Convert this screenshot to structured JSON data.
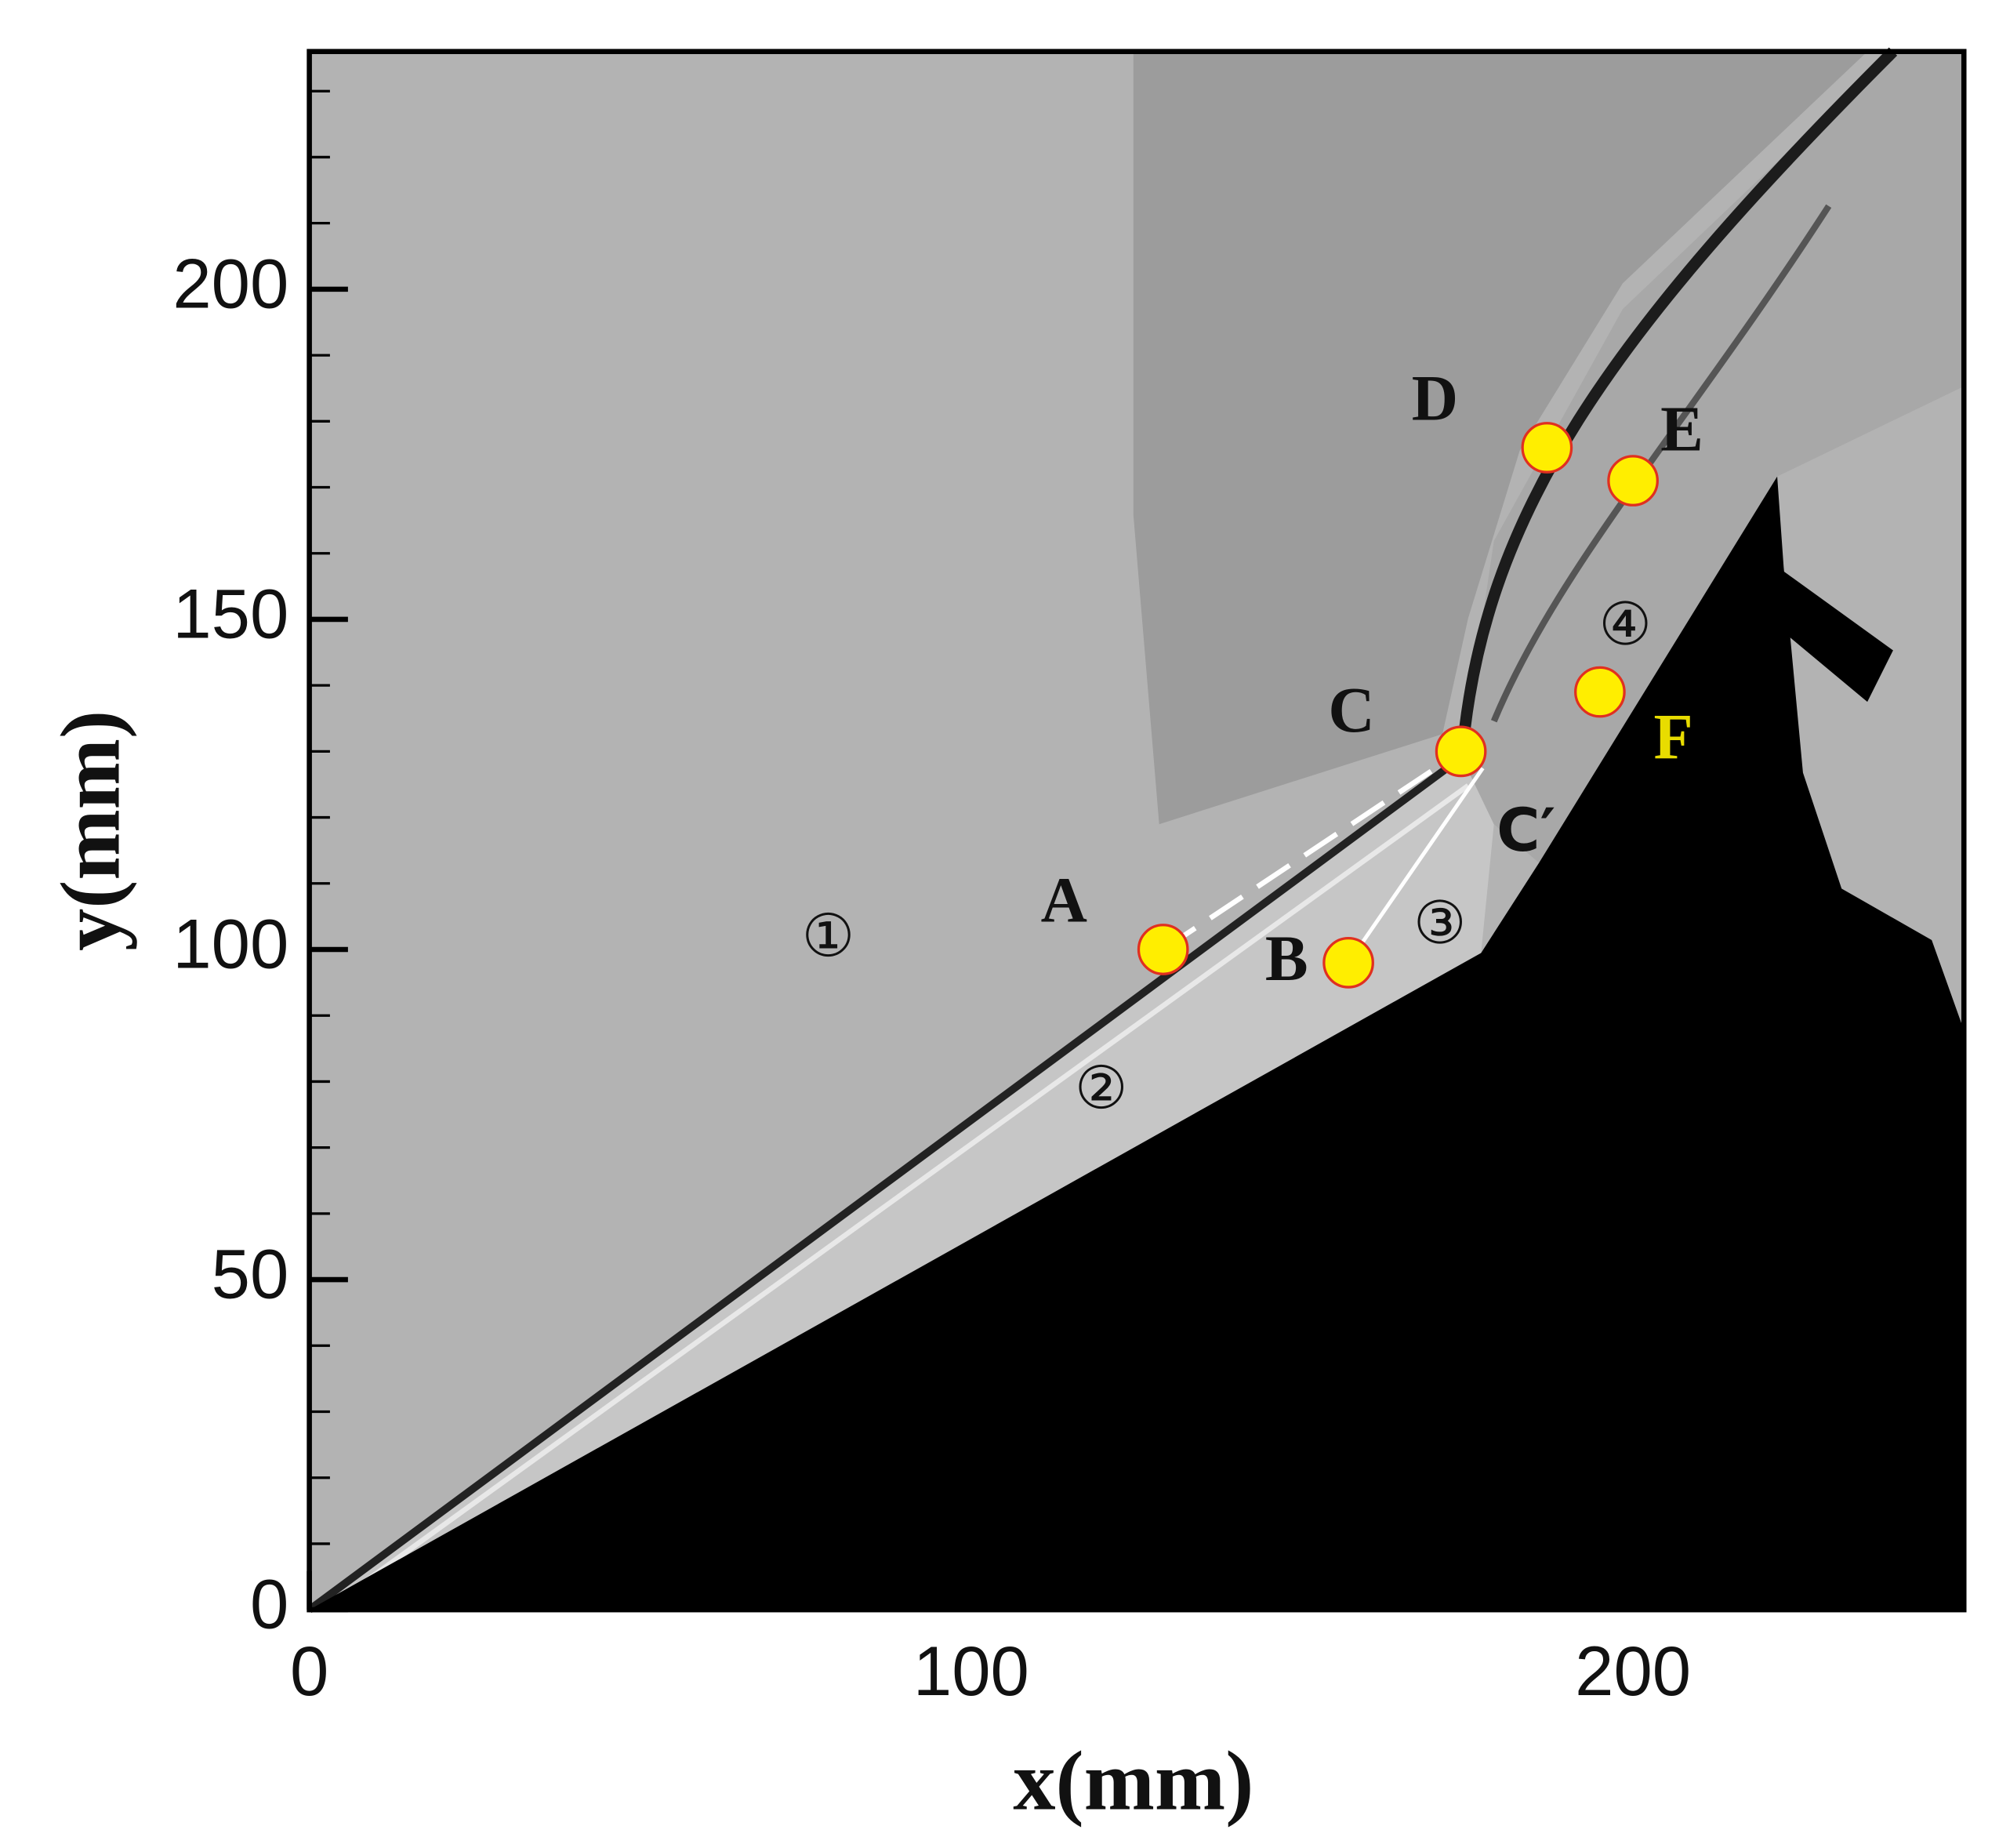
{
  "chart_data": {
    "type": "scatter",
    "xlabel": "x(mm)",
    "ylabel": "y(mm)",
    "xlim": [
      0,
      250
    ],
    "ylim": [
      0,
      236
    ],
    "xticks": [
      0,
      100,
      200
    ],
    "yticks": [
      0,
      50,
      100,
      150,
      200
    ],
    "x_minor_ticks": [
      20,
      40,
      60,
      80,
      120,
      140,
      160,
      180,
      220,
      240
    ],
    "y_minor_ticks": [
      10,
      20,
      30,
      40,
      60,
      70,
      80,
      90,
      110,
      120,
      130,
      140,
      160,
      170,
      180,
      190,
      210,
      220,
      230
    ],
    "points": {
      "labels": [
        "A",
        "B",
        "C",
        "D",
        "E",
        "F"
      ],
      "x": [
        129,
        157,
        174,
        187,
        200,
        195
      ],
      "y": [
        100,
        98,
        130,
        176,
        171,
        139
      ],
      "color": "#ffee00",
      "label_colors": [
        "#111111",
        "#111111",
        "#111111",
        "#111111",
        "#111111",
        "#e8dc00"
      ]
    },
    "annotations": [
      "①",
      "②",
      "③",
      "④",
      "C′"
    ]
  }
}
